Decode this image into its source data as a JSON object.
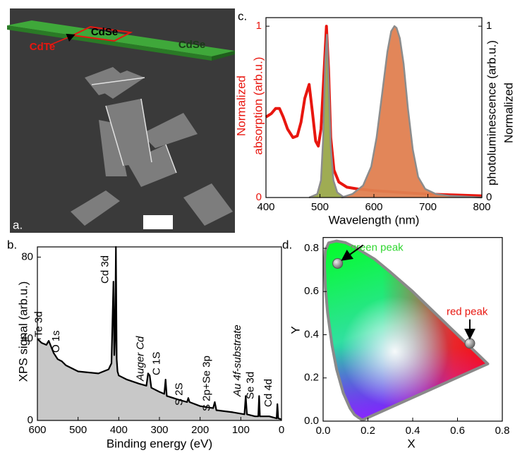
{
  "panel_a": {
    "label": "a.",
    "labels": [
      "CdSe",
      "CdTe",
      "CdSe"
    ]
  },
  "chart_data": [
    {
      "type": "line",
      "panel_label": "c.",
      "xlabel": "Wavelength (nm)",
      "ylabel": [
        "Normalized",
        "absorption (arb.u.)"
      ],
      "y2label": [
        "Normalized",
        "photoluminescence (arb.u.)"
      ],
      "xlim": [
        400,
        800
      ],
      "xticks": [
        400,
        500,
        600,
        700,
        800
      ],
      "ylim": [
        0,
        1.05
      ],
      "yticks": [
        0,
        1
      ],
      "y2lim": [
        0,
        1.05
      ],
      "y2ticks": [
        0,
        1
      ],
      "series": [
        {
          "color": "#e8160f",
          "x": [
            400,
            410,
            418,
            425,
            432,
            440,
            450,
            458,
            465,
            472,
            480,
            486,
            492,
            497,
            502,
            507,
            512,
            516,
            520,
            526,
            535,
            550,
            570,
            600,
            650,
            700,
            750,
            800
          ],
          "values": [
            0.47,
            0.49,
            0.52,
            0.52,
            0.47,
            0.4,
            0.35,
            0.36,
            0.44,
            0.58,
            0.66,
            0.5,
            0.33,
            0.3,
            0.4,
            0.7,
            1.0,
            0.75,
            0.35,
            0.16,
            0.09,
            0.06,
            0.05,
            0.04,
            0.03,
            0.02,
            0.015,
            0.01
          ]
        },
        {
          "color": "#9aa84a",
          "axis": "y2",
          "fill": true,
          "x": [
            480,
            495,
            502,
            506,
            510,
            513,
            516,
            520,
            525,
            532,
            545
          ],
          "values": [
            0,
            0.02,
            0.1,
            0.35,
            0.8,
            0.95,
            0.7,
            0.3,
            0.1,
            0.03,
            0
          ]
        },
        {
          "color": "#e07f50",
          "axis": "y2",
          "fill": true,
          "x": [
            540,
            560,
            580,
            595,
            605,
            615,
            625,
            632,
            638,
            642,
            648,
            655,
            663,
            672,
            682,
            695,
            715,
            740,
            770,
            800
          ],
          "values": [
            0,
            0.02,
            0.07,
            0.18,
            0.35,
            0.6,
            0.85,
            0.97,
            1.0,
            0.99,
            0.93,
            0.78,
            0.52,
            0.28,
            0.12,
            0.05,
            0.02,
            0.01,
            0.005,
            0
          ]
        }
      ]
    },
    {
      "type": "area",
      "panel_label": "b.",
      "xlabel": "Binding energy (eV)",
      "ylabel": "XPS signal (arb.u.)",
      "xlim": [
        600,
        0
      ],
      "xticks": [
        600,
        500,
        400,
        300,
        200,
        100,
        0
      ],
      "ylim": [
        0,
        85
      ],
      "yticks": [
        0,
        40,
        80
      ],
      "color": "#000000",
      "fill": "#c8c8c8",
      "x": [
        600,
        590,
        578,
        572,
        560,
        550,
        540,
        530,
        500,
        450,
        425,
        418,
        413,
        411,
        409,
        407,
        405,
        403,
        400,
        380,
        350,
        332,
        328,
        324,
        320,
        300,
        288,
        285,
        282,
        250,
        232,
        229,
        226,
        200,
        168,
        164,
        160,
        120,
        91,
        88,
        85,
        65,
        57,
        55,
        53,
        30,
        12,
        10,
        8,
        0
      ],
      "values": [
        40,
        38,
        37,
        39,
        33,
        30,
        29,
        27,
        24,
        23,
        25,
        28,
        68,
        32,
        40,
        85,
        30,
        24,
        22,
        20,
        18,
        17,
        23,
        22,
        16,
        14,
        13,
        20,
        12,
        10,
        9,
        11,
        9,
        7,
        6,
        9,
        5,
        4,
        3,
        12,
        3,
        2,
        2,
        12,
        2,
        2,
        1,
        8,
        1,
        0.5
      ],
      "annotations": [
        {
          "text": "Te 3d",
          "x": 575
        },
        {
          "text": "O 1s",
          "x": 532
        },
        {
          "text": "Cd 3d",
          "x": 412
        },
        {
          "text": "Auger Cd",
          "x": 325
        },
        {
          "text": "C 1S",
          "x": 285
        },
        {
          "text": "S 2S",
          "x": 230
        },
        {
          "text": "S 2p+Se 3p",
          "x": 162
        },
        {
          "text": "Au 4f-substrate",
          "x": 87
        },
        {
          "text": "Se 3d",
          "x": 55
        },
        {
          "text": "Cd 4d",
          "x": 10
        }
      ]
    },
    {
      "type": "scatter",
      "panel_label": "d.",
      "xlabel": "X",
      "ylabel": "Y",
      "xlim": [
        0,
        0.8
      ],
      "xticks": [
        0.0,
        0.2,
        0.4,
        0.6,
        0.8
      ],
      "ylim": [
        0,
        0.85
      ],
      "yticks": [
        0.0,
        0.2,
        0.4,
        0.6,
        0.8
      ],
      "x": [
        0.065,
        0.655
      ],
      "values": [
        0.73,
        0.36
      ],
      "annotations": [
        "green peak",
        "red peak"
      ],
      "annotation_colors": [
        "#2fd62f",
        "#e8160f"
      ],
      "color": "#8a8a8a",
      "boundary": {
        "x": [
          0.175,
          0.16,
          0.14,
          0.12,
          0.09,
          0.06,
          0.04,
          0.02,
          0.01,
          0.006,
          0.01,
          0.025,
          0.06,
          0.1,
          0.15,
          0.23,
          0.3,
          0.4,
          0.5,
          0.6,
          0.7,
          0.735
        ],
        "y": [
          0.005,
          0.015,
          0.03,
          0.06,
          0.13,
          0.24,
          0.35,
          0.5,
          0.62,
          0.73,
          0.79,
          0.825,
          0.834,
          0.826,
          0.8,
          0.75,
          0.69,
          0.6,
          0.5,
          0.4,
          0.3,
          0.265
        ]
      }
    }
  ]
}
